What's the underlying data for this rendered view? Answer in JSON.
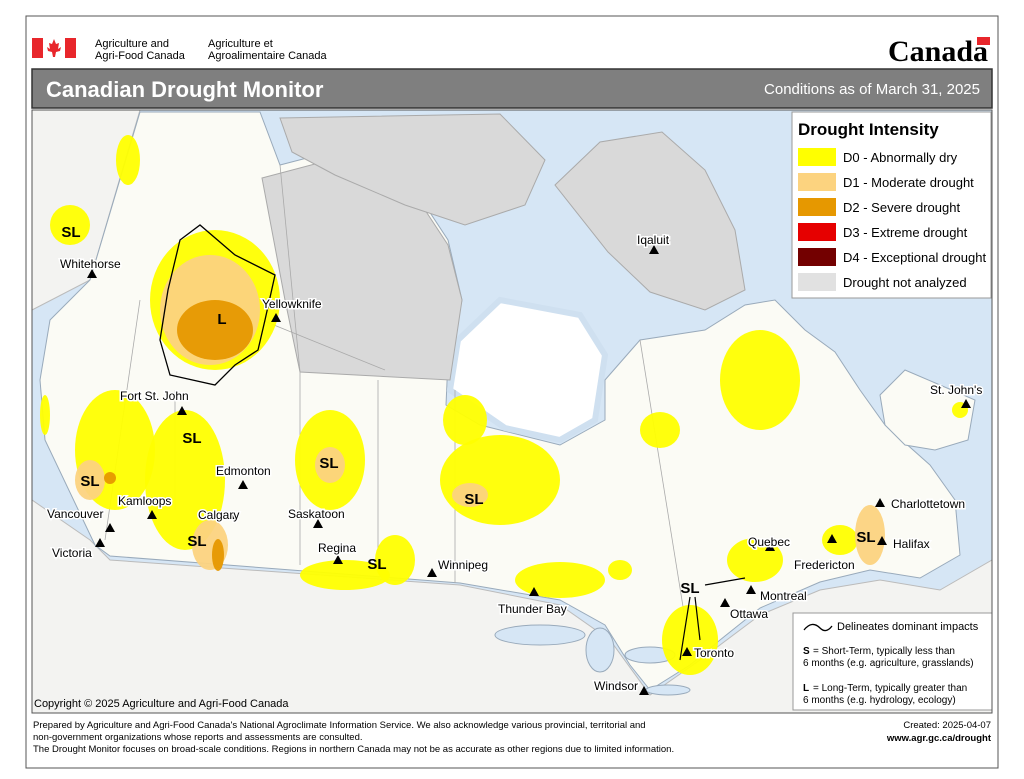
{
  "header": {
    "department_en": [
      "Agriculture and",
      "Agri-Food Canada"
    ],
    "department_fr": [
      "Agriculture et",
      "Agroalimentaire Canada"
    ],
    "wordmark": "Canada"
  },
  "title": "Canadian Drought Monitor",
  "date": "Conditions as of March 31, 2025",
  "legend": {
    "title": "Drought Intensity",
    "items": [
      {
        "label": "D0 - Abnormally dry",
        "color": "#ffff00"
      },
      {
        "label": "D1 - Moderate drought",
        "color": "#fcd37f"
      },
      {
        "label": "D2 - Severe drought",
        "color": "#e69800"
      },
      {
        "label": "D3 - Extreme drought",
        "color": "#e60000"
      },
      {
        "label": "D4 - Exceptional drought",
        "color": "#730000"
      },
      {
        "label": "Drought not analyzed",
        "color": "#e1e1e1"
      }
    ]
  },
  "cities": [
    "Whitehorse",
    "Yellowknife",
    "Iqaluit",
    "Fort St. John",
    "Edmonton",
    "Kamloops",
    "Calgary",
    "Vancouver",
    "Victoria",
    "Saskatoon",
    "Regina",
    "Winnipeg",
    "Thunder Bay",
    "Toronto",
    "Ottawa",
    "Montreal",
    "Quebec",
    "Fredericton",
    "Halifax",
    "Charlottetown",
    "St. John's",
    "Windsor"
  ],
  "impact_labels": [
    "SL",
    "L",
    "SL",
    "SL",
    "SL",
    "SL",
    "SL",
    "SL",
    "SL",
    "SL"
  ],
  "notes": {
    "boundary": "Delineates dominant impacts",
    "short": {
      "letter": "S",
      "lines": [
        "= Short-Term, typically less than",
        "6 months (e.g. agriculture, grasslands)"
      ]
    },
    "long": {
      "letter": "L",
      "lines": [
        "= Long-Term, typically greater  than",
        "6 months (e.g. hydrology, ecology)"
      ]
    }
  },
  "copyright": "Copyright © 2025 Agriculture and Agri-Food Canada",
  "footer": {
    "lines": [
      "Prepared by Agriculture and Agri-Food Canada's National Agroclimate Information Service.  We also acknowledge various provincial, territorial and",
      "non-government organizations whose reports and assessments are consulted.",
      "The Drought Monitor focuses on broad-scale conditions.  Regions in northern Canada may not be as accurate as other regions due to limited information."
    ],
    "created": "Created: 2025-04-07",
    "url": "www.agr.gc.ca/drought"
  }
}
